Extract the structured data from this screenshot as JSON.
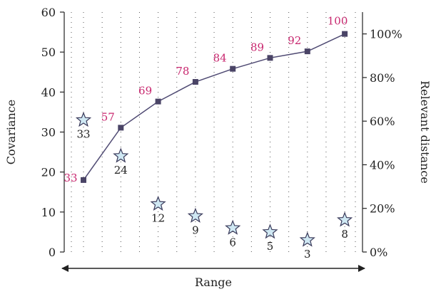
{
  "chart_data": {
    "type": "pareto",
    "xlabel": "Range",
    "ylabel": "Covariance",
    "y2label": "Relevant distance",
    "ylim": [
      0,
      60
    ],
    "y_ticks": [
      0,
      10,
      20,
      30,
      40,
      50,
      60
    ],
    "y2lim": [
      0,
      110
    ],
    "y2_ticks": [
      0,
      20,
      40,
      60,
      80,
      100
    ],
    "y2_tick_labels": [
      "0%",
      "20%",
      "40%",
      "60%",
      "80%",
      "100%"
    ],
    "grid": "vertical-dotted",
    "x": [
      1,
      2,
      3,
      4,
      5,
      6,
      7,
      8
    ],
    "series": [
      {
        "kind": "stars",
        "axis": "left",
        "values": [
          33,
          24,
          12,
          9,
          6,
          5,
          3,
          8
        ],
        "labels": [
          "33",
          "24",
          "12",
          "9",
          "6",
          "5",
          "3",
          "8"
        ]
      },
      {
        "kind": "line",
        "axis": "right",
        "values": [
          33,
          57,
          69,
          78,
          84,
          89,
          92,
          100
        ],
        "labels": [
          "33",
          "57",
          "69",
          "78",
          "84",
          "89",
          "92",
          "100"
        ]
      }
    ],
    "colors": {
      "line": "#4f4a73",
      "marker": "#4a4466",
      "line_label": "#c8266e",
      "star_fill": "#cfe8f3",
      "star_stroke": "#3a3a5a",
      "axis": "#222222"
    }
  }
}
